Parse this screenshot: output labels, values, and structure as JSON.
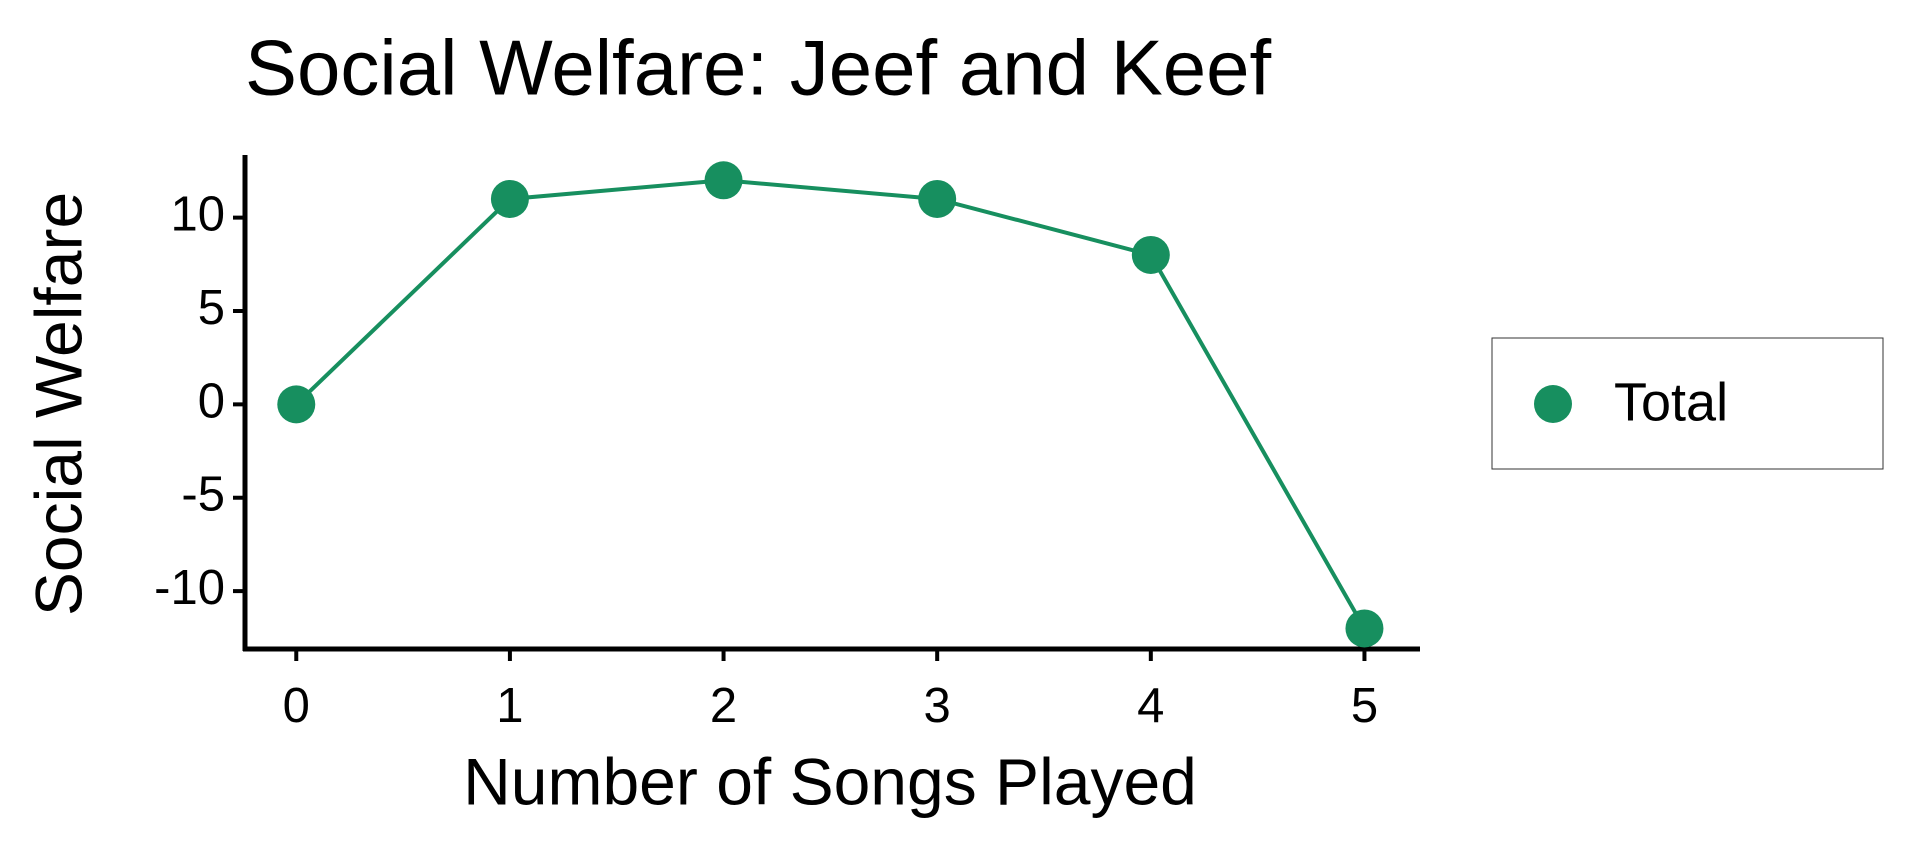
{
  "chart_data": {
    "type": "line",
    "title": "Social Welfare: Jeef and Keef",
    "x_label": "Number of Songs Played",
    "y_label": "Social Welfare",
    "x": [
      0,
      1,
      2,
      3,
      4,
      5
    ],
    "series": [
      {
        "name": "Total",
        "color": "#178f5f",
        "values": [
          0,
          11,
          12,
          11,
          8,
          -12
        ]
      }
    ],
    "xlim": [
      -0.24,
      5.26
    ],
    "ylim": [
      -13.1,
      13.3
    ],
    "xticks": [
      0,
      1,
      2,
      3,
      4,
      5
    ],
    "yticks": [
      -10,
      -5,
      0,
      5,
      10
    ],
    "grid": false,
    "legend": "right"
  }
}
